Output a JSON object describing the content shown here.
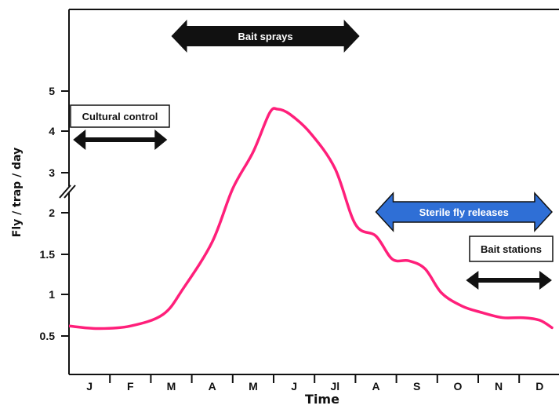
{
  "chart_data": {
    "type": "line",
    "title": "",
    "xlabel": "Time",
    "ylabel": "Fly / trap / day",
    "categories": [
      "J",
      "F",
      "M",
      "A",
      "M",
      "J",
      "Jl",
      "A",
      "S",
      "O",
      "N",
      "D"
    ],
    "y_ticks": [
      "0.5",
      "1",
      "1.5",
      "2",
      "3",
      "4",
      "5"
    ],
    "y_axis_break": true,
    "grid": false,
    "series": [
      {
        "color": "#ff1f7a",
        "points": [
          {
            "x": 0.0,
            "y": 0.62
          },
          {
            "x": 0.7,
            "y": 0.59
          },
          {
            "x": 1.5,
            "y": 0.62
          },
          {
            "x": 2.3,
            "y": 0.76
          },
          {
            "x": 2.8,
            "y": 1.08
          },
          {
            "x": 3.5,
            "y": 1.65
          },
          {
            "x": 4.0,
            "y": 2.6
          },
          {
            "x": 4.5,
            "y": 3.5
          },
          {
            "x": 4.9,
            "y": 4.45
          },
          {
            "x": 5.1,
            "y": 4.55
          },
          {
            "x": 5.4,
            "y": 4.42
          },
          {
            "x": 5.9,
            "y": 3.95
          },
          {
            "x": 6.5,
            "y": 3.1
          },
          {
            "x": 7.0,
            "y": 1.86
          },
          {
            "x": 7.5,
            "y": 1.72
          },
          {
            "x": 7.9,
            "y": 1.44
          },
          {
            "x": 8.3,
            "y": 1.42
          },
          {
            "x": 8.7,
            "y": 1.32
          },
          {
            "x": 9.1,
            "y": 1.02
          },
          {
            "x": 9.6,
            "y": 0.86
          },
          {
            "x": 10.1,
            "y": 0.78
          },
          {
            "x": 10.6,
            "y": 0.72
          },
          {
            "x": 11.1,
            "y": 0.72
          },
          {
            "x": 11.5,
            "y": 0.69
          },
          {
            "x": 11.8,
            "y": 0.6
          }
        ]
      }
    ],
    "annotations": [
      {
        "label": "Bait sprays",
        "start_month": 2.5,
        "end_month": 7.1,
        "fill": "#111111",
        "text_color": "#ffffff"
      },
      {
        "label": "Cultural control",
        "start_month": 0.1,
        "end_month": 2.4,
        "fill": "#ffffff",
        "text_color": "#111111"
      },
      {
        "label": "Sterile fly releases",
        "start_month": 7.5,
        "end_month": 11.8,
        "fill": "#2f6fd6",
        "text_color": "#ffffff"
      },
      {
        "label": "Bait stations",
        "start_month": 9.7,
        "end_month": 11.8,
        "fill": "#ffffff",
        "text_color": "#111111"
      }
    ]
  }
}
